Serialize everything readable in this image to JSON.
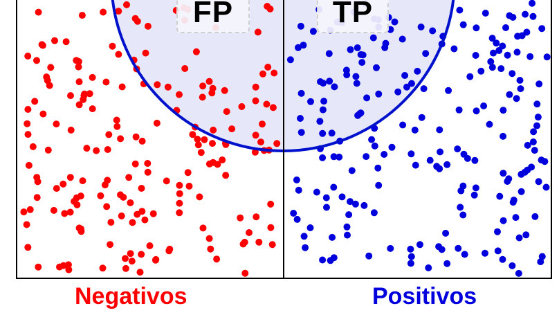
{
  "labels": {
    "fp": "FP",
    "tp": "TP",
    "negatives": "Negativos",
    "positives": "Positivos"
  },
  "colors": {
    "negative": "#ff0000",
    "positive": "#0000dd",
    "circle_stroke": "#0011cc",
    "circle_fill": "#e6e8fa",
    "frame": "#000000"
  }
}
